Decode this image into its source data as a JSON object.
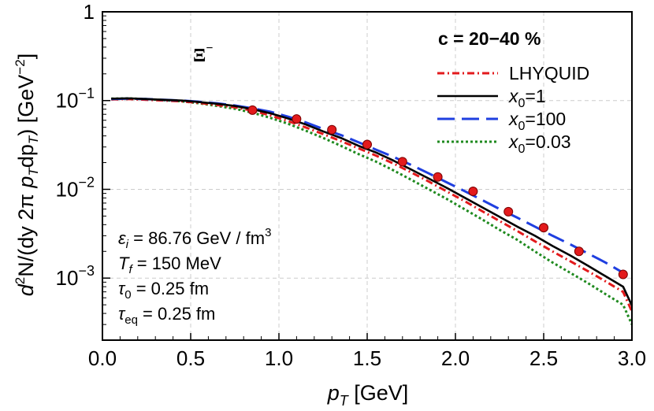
{
  "chart_data": {
    "type": "line",
    "title": "",
    "xlabel": "p_T [GeV]",
    "ylabel": "d²N/(dy 2π p_T dp_T) [GeV⁻²]",
    "xlim": [
      0.0,
      3.0
    ],
    "ylim": [
      0.0002,
      1
    ],
    "yscale": "log",
    "grid": true,
    "x_ticks": [
      "0.0",
      "0.5",
      "1.0",
      "1.5",
      "2.0",
      "2.5",
      "3.0"
    ],
    "y_ticks": [
      "1",
      "10⁻¹",
      "10⁻²",
      "10⁻³"
    ],
    "legend": {
      "header": "c = 20−40 %",
      "placement": "top-right",
      "entries": [
        "LHYQUID",
        "x₀=1",
        "x₀=100",
        "x₀=0.03"
      ]
    },
    "particle_label": "Ξ⁻",
    "annotations": [
      "ε_i = 86.76 GeV / fm³",
      "T_f = 150 MeV",
      "τ_0 = 0.25 fm",
      "τ_eq = 0.25 fm"
    ],
    "series": [
      {
        "name": "LHYQUID",
        "color": "#e31a1c",
        "style": "dashdot",
        "x": [
          0.05,
          0.15,
          0.25,
          0.35,
          0.45,
          0.55,
          0.65,
          0.75,
          0.85,
          0.95,
          1.05,
          1.15,
          1.25,
          1.35,
          1.45,
          1.55,
          1.65,
          1.75,
          1.85,
          1.95,
          2.05,
          2.15,
          2.25,
          2.35,
          2.45,
          2.55,
          2.65,
          2.75,
          2.85,
          2.95,
          3.0
        ],
        "y": [
          0.103,
          0.104,
          0.102,
          0.1,
          0.098,
          0.094,
          0.089,
          0.084,
          0.077,
          0.068,
          0.059,
          0.05,
          0.042,
          0.035,
          0.029,
          0.024,
          0.0195,
          0.0155,
          0.0122,
          0.0095,
          0.0074,
          0.0057,
          0.0044,
          0.0034,
          0.0026,
          0.002,
          0.00155,
          0.0012,
          0.00092,
          0.0007,
          0.00042
        ]
      },
      {
        "name": "x₀=1",
        "color": "#000000",
        "style": "solid",
        "x": [
          0.05,
          0.15,
          0.25,
          0.35,
          0.45,
          0.55,
          0.65,
          0.75,
          0.85,
          0.95,
          1.05,
          1.15,
          1.25,
          1.35,
          1.45,
          1.55,
          1.65,
          1.75,
          1.85,
          1.95,
          2.05,
          2.15,
          2.25,
          2.35,
          2.45,
          2.55,
          2.65,
          2.75,
          2.85,
          2.95,
          3.0
        ],
        "y": [
          0.105,
          0.106,
          0.104,
          0.102,
          0.1,
          0.096,
          0.092,
          0.087,
          0.08,
          0.072,
          0.063,
          0.054,
          0.045,
          0.038,
          0.031,
          0.026,
          0.021,
          0.0167,
          0.0132,
          0.0104,
          0.0081,
          0.0063,
          0.0049,
          0.0038,
          0.003,
          0.0023,
          0.0018,
          0.00138,
          0.00105,
          0.0008,
          0.00049
        ]
      },
      {
        "name": "x₀=100",
        "color": "#1f3fe0",
        "style": "dashed",
        "x": [
          0.05,
          0.15,
          0.25,
          0.35,
          0.45,
          0.55,
          0.65,
          0.75,
          0.85,
          0.95,
          1.05,
          1.15,
          1.25,
          1.35,
          1.45,
          1.55,
          1.65,
          1.75,
          1.85,
          1.95,
          2.05,
          2.15,
          2.25,
          2.35,
          2.45,
          2.55,
          2.65,
          2.75,
          2.85,
          2.95
        ],
        "y": [
          0.104,
          0.105,
          0.104,
          0.102,
          0.1,
          0.097,
          0.093,
          0.088,
          0.082,
          0.075,
          0.066,
          0.057,
          0.048,
          0.041,
          0.034,
          0.028,
          0.0232,
          0.0188,
          0.0151,
          0.012,
          0.0096,
          0.0076,
          0.006,
          0.0048,
          0.0038,
          0.003,
          0.0024,
          0.0019,
          0.0015,
          0.00115
        ]
      },
      {
        "name": "x₀=0.03",
        "color": "#1f8a1f",
        "style": "dotted",
        "x": [
          0.05,
          0.15,
          0.25,
          0.35,
          0.45,
          0.55,
          0.65,
          0.75,
          0.85,
          0.95,
          1.05,
          1.15,
          1.25,
          1.35,
          1.45,
          1.55,
          1.65,
          1.75,
          1.85,
          1.95,
          2.05,
          2.15,
          2.25,
          2.35,
          2.45,
          2.55,
          2.65,
          2.75,
          2.85,
          2.95,
          3.0
        ],
        "y": [
          0.105,
          0.106,
          0.104,
          0.101,
          0.098,
          0.093,
          0.087,
          0.081,
          0.073,
          0.064,
          0.055,
          0.046,
          0.038,
          0.031,
          0.025,
          0.0205,
          0.0163,
          0.0128,
          0.01,
          0.0078,
          0.006,
          0.0046,
          0.0035,
          0.0027,
          0.002,
          0.0015,
          0.00115,
          0.00088,
          0.00066,
          0.0005,
          0.0003
        ]
      },
      {
        "name": "data",
        "color": "#e31a1c",
        "style": "markers",
        "x": [
          0.85,
          1.1,
          1.3,
          1.5,
          1.7,
          1.9,
          2.1,
          2.3,
          2.5,
          2.7,
          2.95
        ],
        "y": [
          0.078,
          0.062,
          0.047,
          0.032,
          0.0205,
          0.0138,
          0.0095,
          0.0056,
          0.0037,
          0.002,
          0.0011
        ]
      }
    ]
  }
}
